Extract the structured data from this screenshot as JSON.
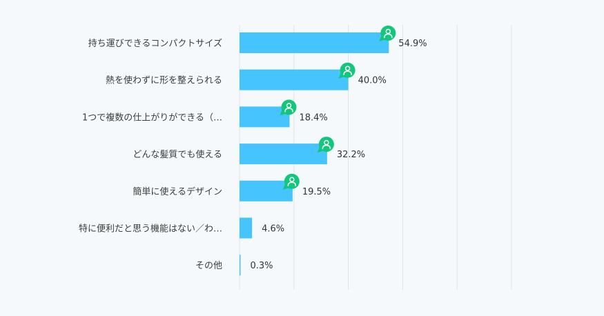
{
  "chart_data": {
    "type": "bar",
    "orientation": "horizontal",
    "title": "",
    "xlabel": "",
    "ylabel": "",
    "xlim": [
      0,
      100
    ],
    "grid": true,
    "categories": [
      "持ち運びできるコンパクトサイズ",
      "熱を使わずに形を整えられる",
      "1つで複数の仕上がりができる（…",
      "どんな髪質でも使える",
      "簡単に使えるデザイン",
      "特に便利だと思う機能はない／わ…",
      "その他"
    ],
    "values": [
      54.9,
      40.0,
      18.4,
      32.2,
      19.5,
      4.6,
      0.3
    ],
    "value_labels": [
      "54.9%",
      "40.0%",
      "18.4%",
      "32.2%",
      "19.5%",
      "4.6%",
      "0.3%"
    ],
    "badge_icon": "user-chat-icon",
    "badged": [
      true,
      true,
      true,
      true,
      true,
      false,
      false
    ]
  },
  "colors": {
    "bar": "#45c4fd",
    "badge": "#12c77b",
    "grid": "#dde3e7",
    "background": "#f5f9fb"
  }
}
